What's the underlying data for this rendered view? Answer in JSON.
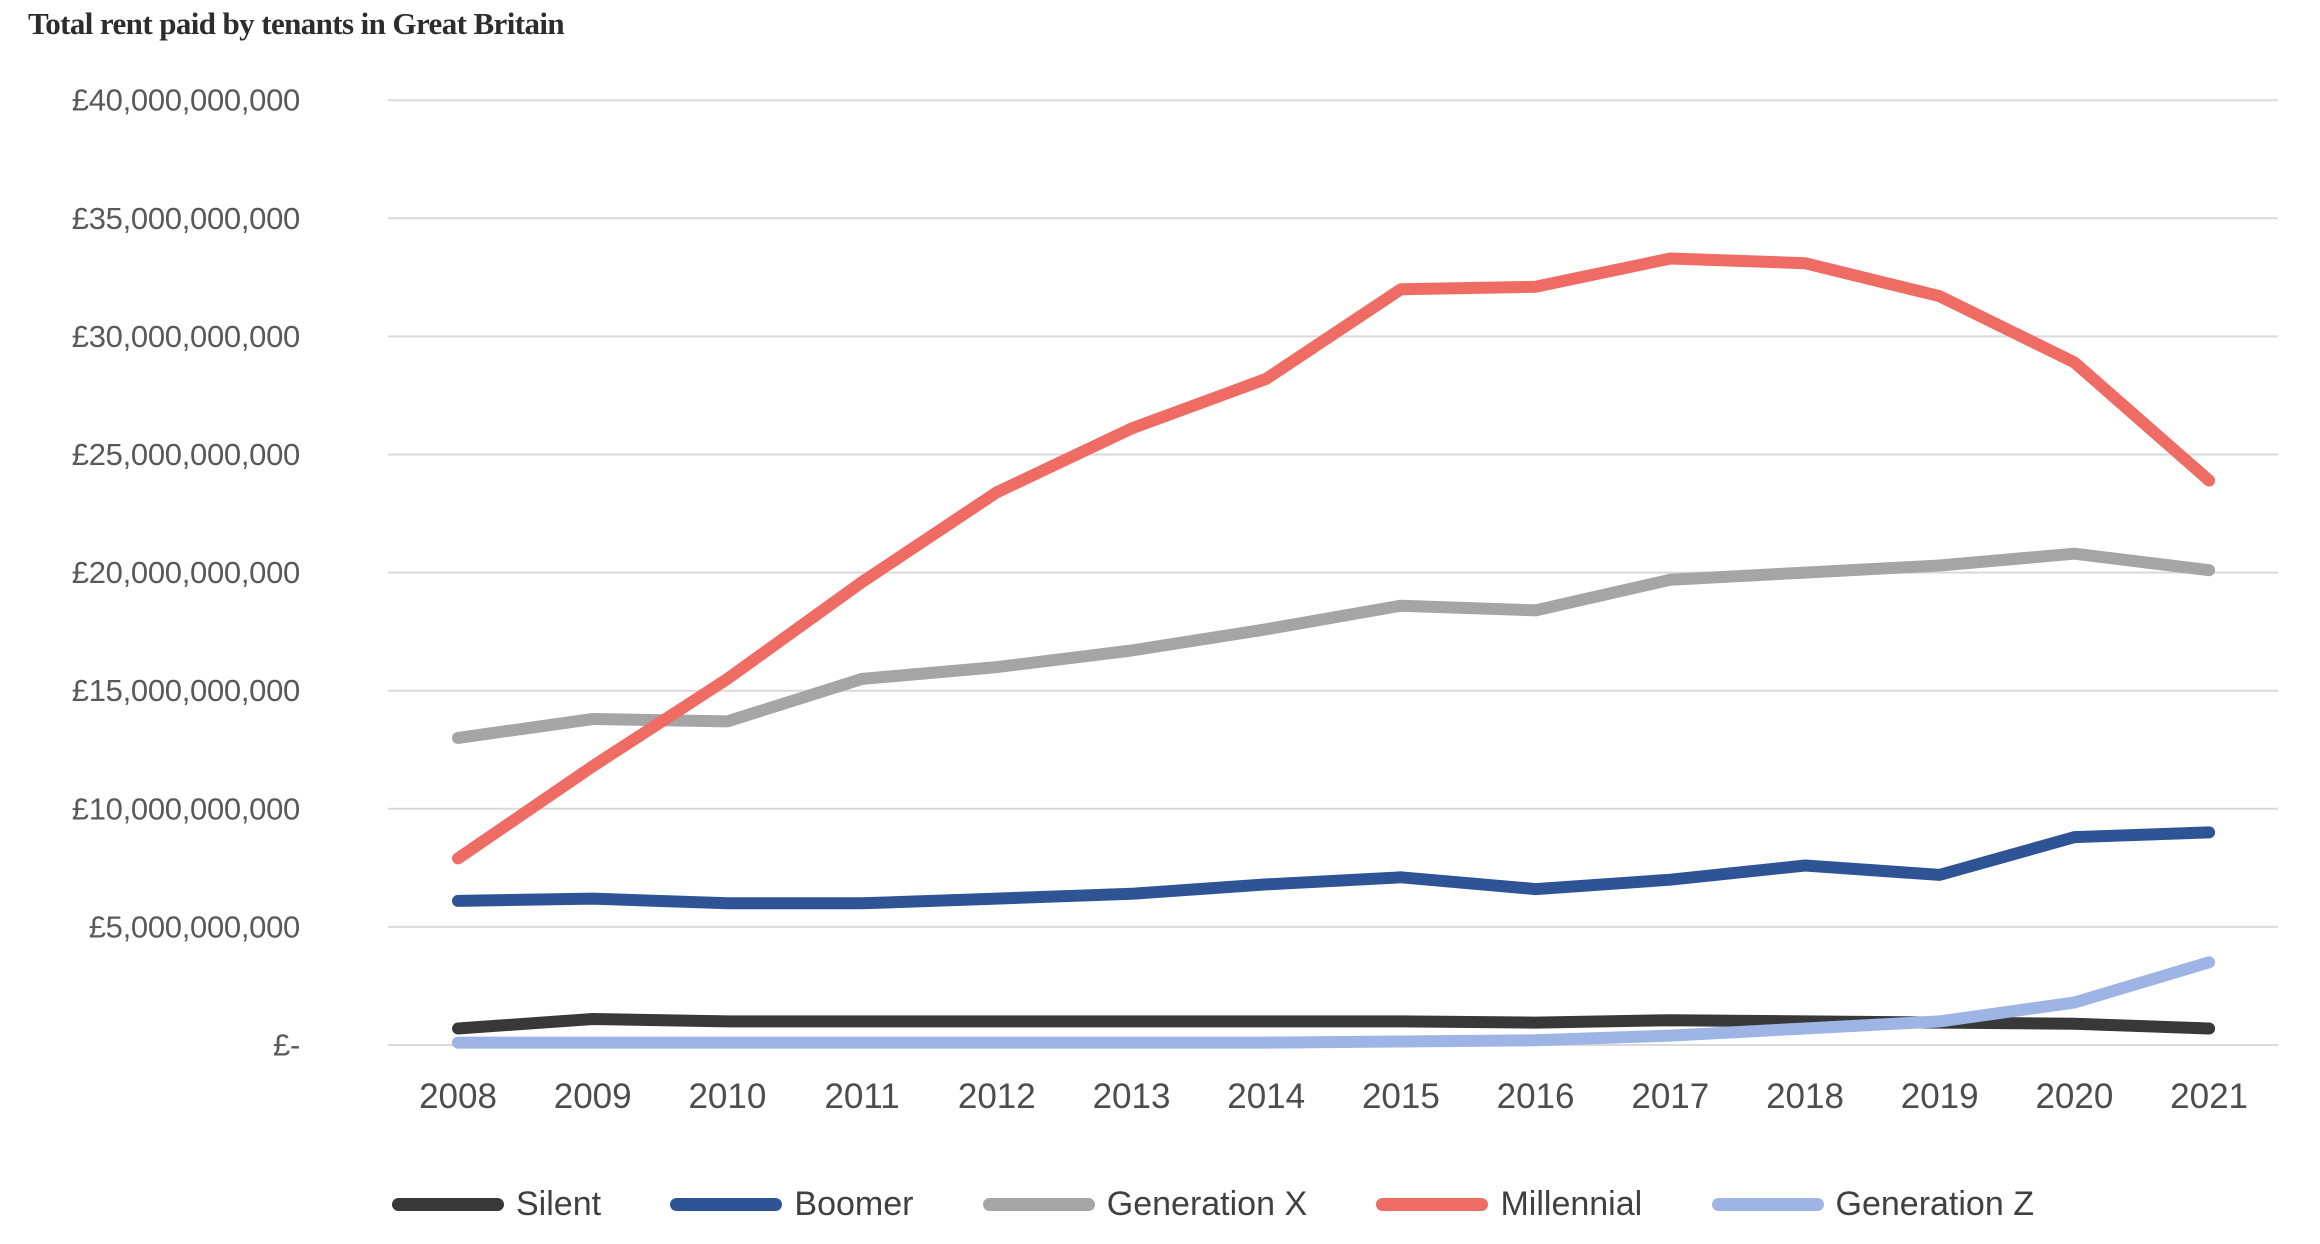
{
  "chart_data": {
    "type": "line",
    "title": "Total rent paid by tenants in Great Britain",
    "x_years": [
      "2008",
      "2009",
      "2010",
      "2011",
      "2012",
      "2013",
      "2014",
      "2015",
      "2016",
      "2017",
      "2018",
      "2019",
      "2020",
      "2021"
    ],
    "values_unit": "GBP billions",
    "y_axis": {
      "min_billion": 0,
      "max_billion": 40,
      "step_billion": 5,
      "tick_labels_bottom_to_top": [
        "£-",
        "£5,000,000,000",
        "£10,000,000,000",
        "£15,000,000,000",
        "£20,000,000,000",
        "£25,000,000,000",
        "£30,000,000,000",
        "£35,000,000,000",
        "£40,000,000,000"
      ]
    },
    "grid": "horizontal",
    "legend_position": "bottom",
    "gridline_color": "#d9d9d9",
    "series": [
      {
        "name": "Silent",
        "color": "#383838",
        "values": [
          0.7,
          1.1,
          1.0,
          1.0,
          1.0,
          1.0,
          1.0,
          1.0,
          0.95,
          1.05,
          1.0,
          0.95,
          0.9,
          0.7
        ]
      },
      {
        "name": "Boomer",
        "color": "#2f5496",
        "values": [
          6.1,
          6.2,
          6.0,
          6.0,
          6.2,
          6.4,
          6.8,
          7.1,
          6.6,
          7.0,
          7.6,
          7.2,
          8.8,
          9.0
        ]
      },
      {
        "name": "Generation X",
        "color": "#a5a5a5",
        "values": [
          13.0,
          13.8,
          13.7,
          15.5,
          16.0,
          16.7,
          17.6,
          18.6,
          18.4,
          19.7,
          20.0,
          20.3,
          20.8,
          20.1
        ]
      },
      {
        "name": "Millennial",
        "color": "#ee6c63",
        "values": [
          7.9,
          11.8,
          15.5,
          19.6,
          23.4,
          26.1,
          28.2,
          32.0,
          32.1,
          33.3,
          33.1,
          31.7,
          28.9,
          23.9
        ]
      },
      {
        "name": "Generation Z",
        "color": "#9db4e4",
        "values": [
          0.1,
          0.1,
          0.1,
          0.1,
          0.1,
          0.1,
          0.1,
          0.15,
          0.2,
          0.4,
          0.7,
          1.0,
          1.8,
          3.5
        ]
      }
    ]
  }
}
